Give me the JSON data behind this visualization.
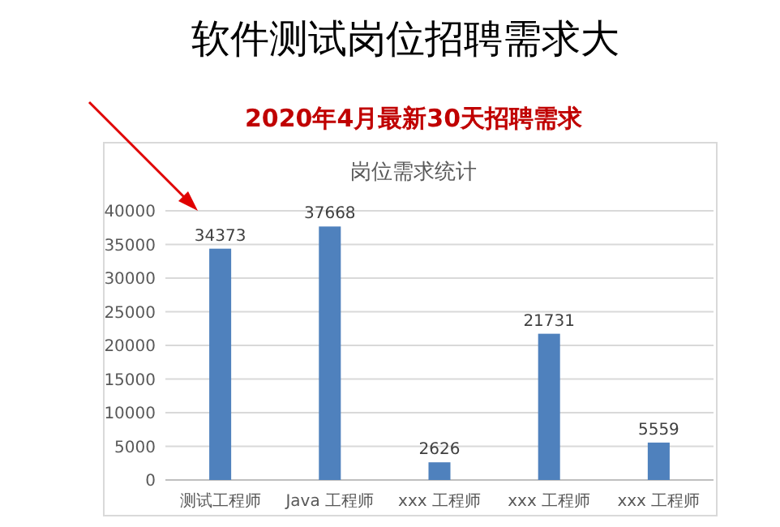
{
  "chart_data": {
    "type": "bar",
    "title": "软件测试岗位招聘需求大",
    "subtitle": "2020年4月最新30天招聘需求",
    "annotations": [
      "岗位需求统计"
    ],
    "categories": [
      "测试工程师",
      "Java 工程师",
      "xxx 工程师",
      "xxx 工程师",
      "xxx 工程师"
    ],
    "values": [
      34373,
      37668,
      2626,
      21731,
      5559
    ],
    "color": "#4f81bd",
    "ylim": [
      0,
      40000
    ],
    "yticks": [
      0,
      5000,
      10000,
      15000,
      20000,
      25000,
      30000,
      35000,
      40000
    ],
    "grid": "y",
    "data_labels": true
  }
}
